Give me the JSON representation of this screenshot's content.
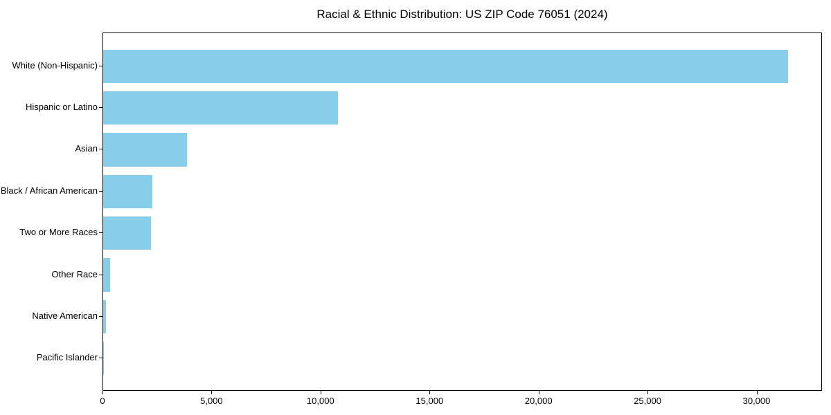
{
  "chart_data": {
    "type": "bar",
    "orientation": "horizontal",
    "title": "Racial & Ethnic Distribution: US ZIP Code 76051 (2024)",
    "xlabel": "",
    "ylabel": "",
    "categories": [
      "White (Non-Hispanic)",
      "Hispanic or Latino",
      "Asian",
      "Black / African American",
      "Two or More Races",
      "Other Race",
      "Native American",
      "Pacific Islander"
    ],
    "values": [
      31400,
      10750,
      3850,
      2250,
      2180,
      320,
      140,
      25
    ],
    "xlim": [
      0,
      33000
    ],
    "xticks": [
      0,
      5000,
      10000,
      15000,
      20000,
      25000,
      30000
    ],
    "xtick_labels": [
      "0",
      "5,000",
      "10,000",
      "15,000",
      "20,000",
      "25,000",
      "30,000"
    ],
    "bar_color": "#87CEEB",
    "background_color": "#ffffff",
    "grid": false,
    "legend": null
  }
}
